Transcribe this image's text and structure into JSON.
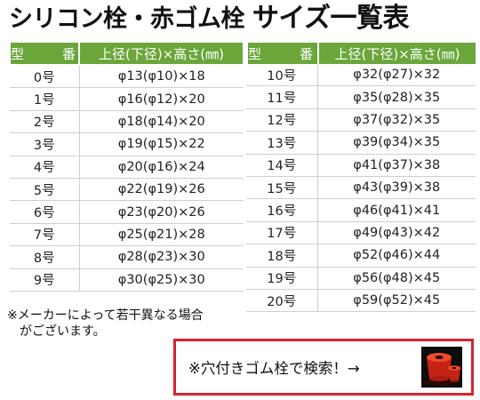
{
  "title": {
    "main": "シリコン栓・赤ゴム栓",
    "sub": "サイズ一覧表"
  },
  "table": {
    "header": {
      "type": "型　番",
      "size": "上径(下径)×高さ(㎜)"
    },
    "left_rows": [
      {
        "no": "0号",
        "size": "φ13(φ10)×18"
      },
      {
        "no": "1号",
        "size": "φ16(φ12)×20"
      },
      {
        "no": "2号",
        "size": "φ18(φ14)×20"
      },
      {
        "no": "3号",
        "size": "φ19(φ15)×22"
      },
      {
        "no": "4号",
        "size": "φ20(φ16)×24"
      },
      {
        "no": "5号",
        "size": "φ22(φ19)×26"
      },
      {
        "no": "6号",
        "size": "φ23(φ20)×26"
      },
      {
        "no": "7号",
        "size": "φ25(φ21)×28"
      },
      {
        "no": "8号",
        "size": "φ28(φ23)×30"
      },
      {
        "no": "9号",
        "size": "φ30(φ25)×30"
      }
    ],
    "right_rows": [
      {
        "no": "10号",
        "size": "φ32(φ27)×32"
      },
      {
        "no": "11号",
        "size": "φ35(φ28)×35"
      },
      {
        "no": "12号",
        "size": "φ37(φ32)×35"
      },
      {
        "no": "13号",
        "size": "φ39(φ34)×35"
      },
      {
        "no": "14号",
        "size": "φ41(φ37)×38"
      },
      {
        "no": "15号",
        "size": "φ43(φ39)×38"
      },
      {
        "no": "16号",
        "size": "φ46(φ41)×41"
      },
      {
        "no": "17号",
        "size": "φ49(φ43)×42"
      },
      {
        "no": "18号",
        "size": "φ52(φ46)×44"
      },
      {
        "no": "19号",
        "size": "φ56(φ48)×45"
      },
      {
        "no": "20号",
        "size": "φ59(φ52)×45"
      }
    ]
  },
  "note": {
    "line1": "※メーカーによって若干異なる場合",
    "line2": "がございます。"
  },
  "search_banner": {
    "label": "※穴付きゴム栓で検索！→"
  },
  "colors": {
    "header_green": "#6aa63a",
    "banner_border": "#d5232f",
    "stopper_red": "#e8311f"
  },
  "icons": {
    "product_thumbnail": "red-rubber-stopper-image"
  }
}
